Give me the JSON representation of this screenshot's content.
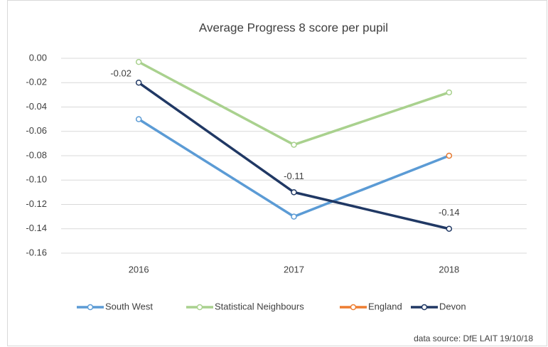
{
  "chart_data": {
    "type": "line",
    "title": "Average Progress 8 score per pupil",
    "categories": [
      "2016",
      "2017",
      "2018"
    ],
    "series": [
      {
        "name": "South West",
        "color": "#5b9bd5",
        "values": [
          -0.05,
          -0.13,
          -0.08
        ]
      },
      {
        "name": "Statistical Neighbours",
        "color": "#a9d18e",
        "values": [
          -0.003,
          -0.071,
          -0.028
        ]
      },
      {
        "name": "England",
        "color": "#ed7d31",
        "values": [
          null,
          null,
          -0.08
        ]
      },
      {
        "name": "Devon",
        "color": "#203864",
        "values": [
          -0.02,
          -0.11,
          -0.14
        ],
        "data_labels": true
      }
    ],
    "ylim": [
      -0.16,
      0
    ],
    "yticks": [
      {
        "value": 0,
        "label": "0.00"
      },
      -0.02,
      -0.04,
      -0.06,
      -0.08,
      {
        "value": -0.1,
        "label": "-0.10"
      },
      -0.12,
      -0.14,
      -0.16
    ],
    "grid": true,
    "legend": "bottom",
    "annotation": "data source: DfE LAIT 19/10/18"
  }
}
